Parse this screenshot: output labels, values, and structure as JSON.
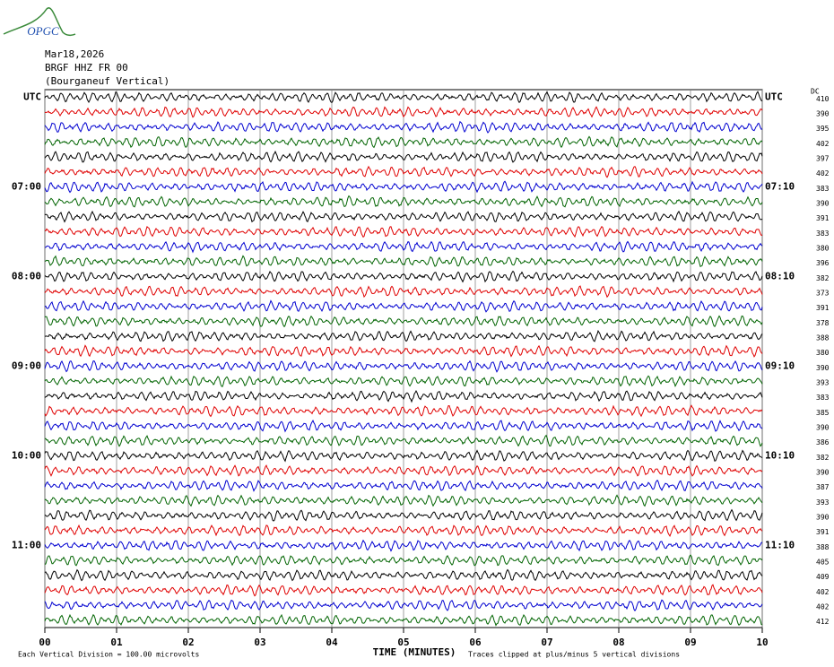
{
  "chart_data": {
    "type": "helicorder",
    "logo": "OPGC",
    "title_lines": [
      "Mar18,2026",
      "BRGF HHZ FR 00",
      "(Bourganeuf Vertical)"
    ],
    "timezone": "UTC",
    "dc_header": "DC",
    "colors": [
      "#000000",
      "#e00000",
      "#0000d0",
      "#006400"
    ],
    "left_labels": [
      "UTC",
      null,
      null,
      null,
      null,
      null,
      "07:00",
      null,
      null,
      null,
      null,
      null,
      "08:00",
      null,
      null,
      null,
      null,
      null,
      "09:00",
      null,
      null,
      null,
      null,
      null,
      "10:00",
      null,
      null,
      null,
      null,
      null,
      "11:00",
      null,
      null,
      null,
      null,
      null
    ],
    "right_labels": [
      "UTC",
      null,
      null,
      null,
      null,
      null,
      "07:10",
      null,
      null,
      null,
      null,
      null,
      "08:10",
      null,
      null,
      null,
      null,
      null,
      "09:10",
      null,
      null,
      null,
      null,
      null,
      "10:10",
      null,
      null,
      null,
      null,
      null,
      "11:10",
      null,
      null,
      null,
      null,
      null
    ],
    "dc": [
      410,
      390,
      395,
      402,
      397,
      402,
      383,
      390,
      391,
      383,
      380,
      396,
      382,
      373,
      391,
      378,
      388,
      380,
      390,
      393,
      383,
      385,
      390,
      386,
      382,
      390,
      387,
      393,
      390,
      391,
      388,
      405,
      409,
      402,
      402,
      412
    ],
    "xlim": [
      0,
      10
    ],
    "xticks": [
      {
        "value": 0,
        "label": "00"
      },
      {
        "value": 1,
        "label": "01"
      },
      {
        "value": 2,
        "label": "02"
      },
      {
        "value": 3,
        "label": "03"
      },
      {
        "value": 4,
        "label": "04"
      },
      {
        "value": 5,
        "label": "05"
      },
      {
        "value": 6,
        "label": "06"
      },
      {
        "value": 7,
        "label": "07"
      },
      {
        "value": 8,
        "label": "08"
      },
      {
        "value": 9,
        "label": "09"
      },
      {
        "value": 10,
        "label": "10"
      }
    ],
    "x_label": "TIME (MINUTES)",
    "footer_left": "Each Vertical Division =  100.00 microvolts",
    "footer_right": "Traces clipped at plus/minus 5 vertical divisions",
    "grid": true
  }
}
